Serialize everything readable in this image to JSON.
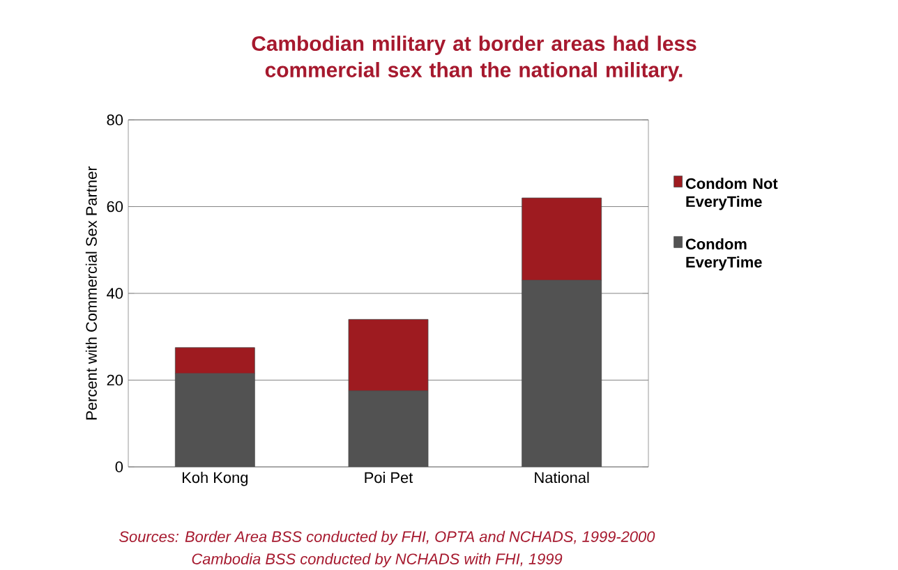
{
  "chart_data": {
    "type": "bar",
    "stacked": true,
    "title": "Cambodian military at border areas had less commercial sex than the national military.",
    "ylabel": "Percent with Commercial Sex Partner",
    "categories": [
      "Koh Kong",
      "Poi Pet",
      "National"
    ],
    "series": [
      {
        "name": "Condom EveryTime",
        "color": "#525252",
        "values": [
          21.5,
          17.5,
          43
        ]
      },
      {
        "name": "Condom Not EveryTime",
        "color": "#9e1b20",
        "values": [
          6,
          16.5,
          19
        ]
      }
    ],
    "ylim": [
      0,
      80
    ],
    "yticks": [
      0,
      20,
      40,
      60,
      80
    ],
    "grid": "y",
    "legend": "right",
    "annotations": [
      "Sources:   Border Area BSS conducted by FHI, OPTA and NCHADS, 1999-2000",
      "Cambodia BSS conducted by NCHADS with FHI, 1999"
    ]
  }
}
